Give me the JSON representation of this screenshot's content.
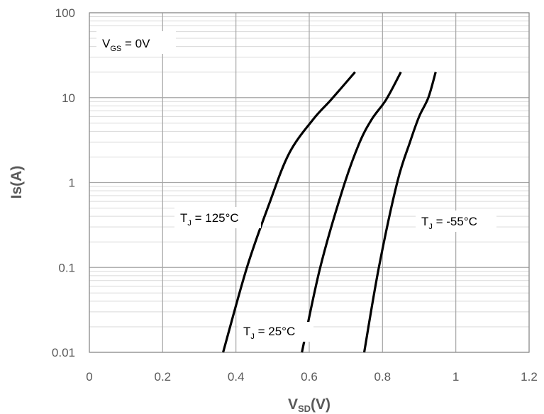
{
  "chart_data": {
    "type": "line",
    "title": "",
    "xlabel": "VSD(V)",
    "xlabel_main": "V",
    "xlabel_sub": "SD",
    "xlabel_unit": "(V)",
    "ylabel": "Is(A)",
    "xlim": [
      0,
      1.2
    ],
    "ylim": [
      0.01,
      100
    ],
    "yscale": "log",
    "grid": true,
    "x_ticks": [
      0,
      0.2,
      0.4,
      0.6,
      0.8,
      1,
      1.2
    ],
    "x_tick_labels": [
      "0",
      "0.2",
      "0.4",
      "0.6",
      "0.8",
      "1",
      "1.2"
    ],
    "y_ticks": [
      0.01,
      0.1,
      1,
      10,
      100
    ],
    "y_tick_labels": [
      "0.01",
      "0.1",
      "1",
      "10",
      "100"
    ],
    "series": [
      {
        "name": "TJ = 125°C",
        "color": "#000000",
        "x": [
          0.365,
          0.43,
          0.49,
          0.545,
          0.61,
          0.66,
          0.725
        ],
        "y": [
          0.01,
          0.1,
          0.55,
          2.2,
          5.5,
          9.5,
          20
        ]
      },
      {
        "name": "TJ = 25°C",
        "color": "#000000",
        "x": [
          0.58,
          0.63,
          0.69,
          0.735,
          0.77,
          0.81,
          0.85
        ],
        "y": [
          0.01,
          0.1,
          0.8,
          2.8,
          5.5,
          9.5,
          20
        ]
      },
      {
        "name": "TJ = -55°C",
        "color": "#000000",
        "x": [
          0.75,
          0.79,
          0.84,
          0.875,
          0.9,
          0.925,
          0.945
        ],
        "y": [
          0.01,
          0.1,
          1.0,
          3.0,
          6.0,
          10,
          20
        ]
      }
    ],
    "annotations": [
      {
        "id": "vgs",
        "main": "V",
        "sub": "GS",
        "rest": " = 0V"
      },
      {
        "id": "t125",
        "main": "T",
        "sub": "J",
        "rest": " = 125°C"
      },
      {
        "id": "t25",
        "main": "T",
        "sub": "J",
        "rest": " = 25°C"
      },
      {
        "id": "tm55",
        "main": "T",
        "sub": "J",
        "rest": " = -55°C"
      }
    ]
  }
}
